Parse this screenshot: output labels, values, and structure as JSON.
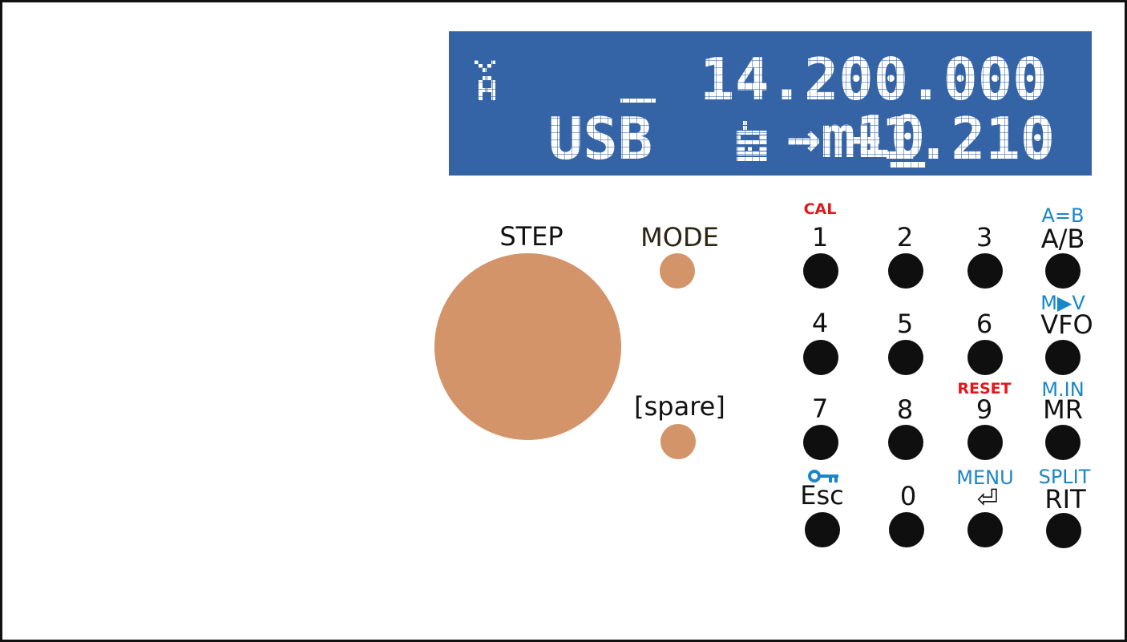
{
  "display": {
    "line1_prefix": "→m1",
    "line1_digit": "0",
    "line1_freq": "14.200.000",
    "line2_mode": "USB",
    "line2_offset": "+1.210",
    "background_color": "#3564a6"
  },
  "controls": {
    "step_label": "STEP",
    "mode_label": "MODE",
    "spare_label": "[spare]",
    "knob_color": "#d4946a"
  },
  "keypad": {
    "keys": [
      {
        "label": "1",
        "alt": "CAL",
        "alt_color": "red"
      },
      {
        "label": "2",
        "alt": ""
      },
      {
        "label": "3",
        "alt": ""
      },
      {
        "label": "A/B",
        "alt": "A=B",
        "alt_color": "blue"
      },
      {
        "label": "4",
        "alt": ""
      },
      {
        "label": "5",
        "alt": ""
      },
      {
        "label": "6",
        "alt": ""
      },
      {
        "label": "VFO",
        "alt": "M▶V",
        "alt_color": "blue"
      },
      {
        "label": "7",
        "alt": ""
      },
      {
        "label": "8",
        "alt": ""
      },
      {
        "label": "9",
        "alt": "RESET",
        "alt_color": "red"
      },
      {
        "label": "MR",
        "alt": "M.IN",
        "alt_color": "blue"
      },
      {
        "label": "Esc",
        "alt": "key-icon",
        "alt_color": "blue"
      },
      {
        "label": "0",
        "alt": ""
      },
      {
        "label": "⏎",
        "alt": "MENU",
        "alt_color": "blue"
      },
      {
        "label": "RIT",
        "alt": "SPLIT",
        "alt_color": "blue"
      }
    ]
  }
}
